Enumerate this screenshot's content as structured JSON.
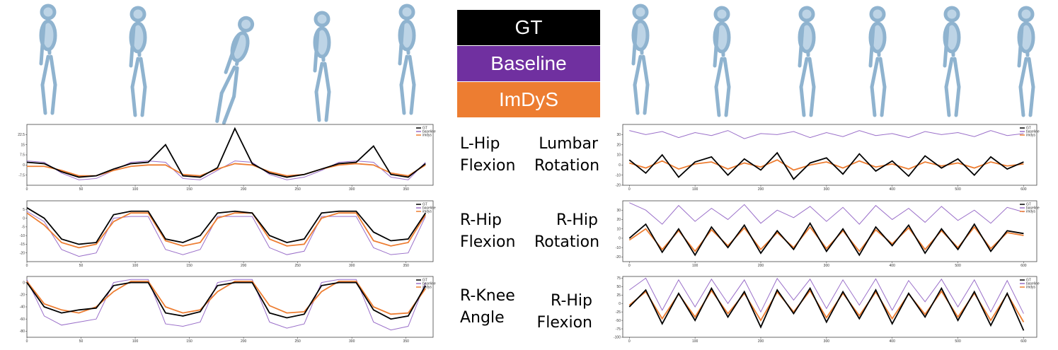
{
  "legend": [
    {
      "name": "GT",
      "color": "#000000"
    },
    {
      "name": "Baseline",
      "color": "#7030a0"
    },
    {
      "name": "ImDyS",
      "color": "#ed7d31"
    }
  ],
  "chart_data": [
    {
      "type": "line",
      "title": "L-Hip Flexion",
      "x": [
        0,
        16,
        32,
        48,
        64,
        80,
        96,
        112,
        128,
        144,
        160,
        176,
        192,
        208,
        224,
        240,
        256,
        272,
        288,
        304,
        320,
        336,
        352,
        368
      ],
      "xlim": [
        0,
        375
      ],
      "xticks": [
        0,
        50,
        100,
        150,
        200,
        250,
        300,
        350
      ],
      "ylim": [
        -15,
        30
      ],
      "yticks": [
        -7.5,
        0,
        7.5,
        15,
        22.5
      ],
      "series": [
        {
          "name": "GT",
          "color": "#000000",
          "values": [
            2,
            1,
            -5,
            -9,
            -8,
            -3,
            1,
            2,
            15,
            -8,
            -9,
            -2,
            27,
            1,
            -6,
            -9,
            -7,
            -3,
            1,
            2,
            14,
            -7,
            -9,
            1
          ]
        },
        {
          "name": "baseline",
          "color": "#9a6fc9",
          "values": [
            3,
            2,
            -6,
            -11,
            -10,
            -4,
            2,
            3,
            2,
            -10,
            -11,
            -4,
            3,
            2,
            -7,
            -11,
            -9,
            -4,
            2,
            3,
            2,
            -9,
            -11,
            2
          ]
        },
        {
          "name": "imdys",
          "color": "#ed7d31",
          "values": [
            -1,
            -1,
            -4,
            -8,
            -8,
            -4,
            -1,
            0,
            0,
            -7,
            -8,
            -3,
            1,
            0,
            -5,
            -8,
            -7,
            -3,
            0,
            1,
            0,
            -6,
            -8,
            0
          ]
        }
      ]
    },
    {
      "type": "line",
      "title": "R-Hip Flexion",
      "x": [
        0,
        16,
        32,
        48,
        64,
        80,
        96,
        112,
        128,
        144,
        160,
        176,
        192,
        208,
        224,
        240,
        256,
        272,
        288,
        304,
        320,
        336,
        352,
        368
      ],
      "xlim": [
        0,
        375
      ],
      "xticks": [
        0,
        50,
        100,
        150,
        200,
        250,
        300,
        350
      ],
      "ylim": [
        -25,
        10
      ],
      "yticks": [
        -20,
        -15,
        -10,
        -5,
        0,
        5
      ],
      "series": [
        {
          "name": "GT",
          "color": "#000000",
          "values": [
            6,
            0,
            -12,
            -15,
            -14,
            2,
            4,
            4,
            -12,
            -14,
            -10,
            3,
            4,
            3,
            -10,
            -14,
            -12,
            3,
            4,
            4,
            -8,
            -13,
            -12,
            3
          ]
        },
        {
          "name": "baseline",
          "color": "#9a6fc9",
          "values": [
            4,
            -2,
            -18,
            -22,
            -20,
            0,
            1,
            1,
            -18,
            -21,
            -18,
            1,
            1,
            1,
            -17,
            -21,
            -19,
            1,
            1,
            1,
            -17,
            -21,
            -20,
            1
          ]
        },
        {
          "name": "imdys",
          "color": "#ed7d31",
          "values": [
            3,
            -4,
            -14,
            -17,
            -15,
            -2,
            3,
            3,
            -13,
            -16,
            -14,
            0,
            3,
            3,
            -12,
            -16,
            -15,
            0,
            3,
            3,
            -13,
            -16,
            -14,
            2
          ]
        }
      ]
    },
    {
      "type": "line",
      "title": "R-Knee Angle",
      "x": [
        0,
        16,
        32,
        48,
        64,
        80,
        96,
        112,
        128,
        144,
        160,
        176,
        192,
        208,
        224,
        240,
        256,
        272,
        288,
        304,
        320,
        336,
        352,
        368
      ],
      "xlim": [
        0,
        375
      ],
      "xticks": [
        0,
        50,
        100,
        150,
        200,
        250,
        300,
        350
      ],
      "ylim": [
        -90,
        10
      ],
      "yticks": [
        -80,
        -60,
        -40,
        -20,
        0
      ],
      "series": [
        {
          "name": "GT",
          "color": "#000000",
          "values": [
            0,
            -40,
            -50,
            -45,
            -42,
            -5,
            0,
            0,
            -50,
            -55,
            -48,
            -5,
            0,
            0,
            -50,
            -58,
            -52,
            -5,
            0,
            0,
            -45,
            -60,
            -55,
            -5
          ]
        },
        {
          "name": "baseline",
          "color": "#9a6fc9",
          "values": [
            5,
            -55,
            -70,
            -65,
            -60,
            0,
            5,
            5,
            -68,
            -72,
            -65,
            0,
            5,
            5,
            -65,
            -75,
            -68,
            0,
            5,
            5,
            -65,
            -78,
            -72,
            0
          ]
        },
        {
          "name": "imdys",
          "color": "#ed7d31",
          "values": [
            2,
            -35,
            -45,
            -50,
            -40,
            -15,
            2,
            2,
            -40,
            -50,
            -45,
            -15,
            2,
            2,
            -38,
            -50,
            -48,
            -15,
            2,
            2,
            -40,
            -52,
            -50,
            -10
          ]
        }
      ]
    },
    {
      "type": "line",
      "title": "Lumbar Rotation",
      "x": [
        0,
        25,
        50,
        75,
        100,
        125,
        150,
        175,
        200,
        225,
        250,
        275,
        300,
        325,
        350,
        375,
        400,
        425,
        450,
        475,
        500,
        525,
        550,
        575,
        600
      ],
      "xlim": [
        -10,
        620
      ],
      "xticks": [
        0,
        100,
        200,
        300,
        400,
        500,
        600
      ],
      "ylim": [
        -20,
        40
      ],
      "yticks": [
        -20,
        -10,
        0,
        10,
        20,
        30
      ],
      "series": [
        {
          "name": "GT",
          "color": "#000000",
          "values": [
            5,
            -8,
            10,
            -12,
            3,
            8,
            -10,
            6,
            -5,
            12,
            -14,
            2,
            7,
            -9,
            11,
            -6,
            4,
            -11,
            9,
            -3,
            6,
            -10,
            8,
            -4,
            3
          ]
        },
        {
          "name": "baseline",
          "color": "#9a6fc9",
          "values": [
            34,
            30,
            33,
            27,
            32,
            29,
            34,
            26,
            31,
            30,
            33,
            27,
            32,
            28,
            34,
            29,
            31,
            27,
            33,
            30,
            32,
            28,
            34,
            29,
            31
          ]
        },
        {
          "name": "imdys",
          "color": "#ed7d31",
          "values": [
            2,
            -3,
            4,
            -4,
            1,
            3,
            -4,
            2,
            -2,
            5,
            -5,
            0,
            3,
            -3,
            4,
            -2,
            1,
            -4,
            3,
            -1,
            2,
            -3,
            3,
            -1,
            1
          ]
        }
      ]
    },
    {
      "type": "line",
      "title": "R-Hip Rotation",
      "x": [
        0,
        25,
        50,
        75,
        100,
        125,
        150,
        175,
        200,
        225,
        250,
        275,
        300,
        325,
        350,
        375,
        400,
        425,
        450,
        475,
        500,
        525,
        550,
        575,
        600
      ],
      "xlim": [
        -10,
        620
      ],
      "xticks": [
        0,
        100,
        200,
        300,
        400,
        500,
        600
      ],
      "ylim": [
        -25,
        40
      ],
      "yticks": [
        -20,
        -10,
        0,
        10,
        20,
        30
      ],
      "series": [
        {
          "name": "GT",
          "color": "#000000",
          "values": [
            0,
            15,
            -15,
            10,
            -18,
            12,
            -10,
            14,
            -16,
            8,
            -12,
            16,
            -14,
            10,
            -18,
            12,
            -8,
            14,
            -16,
            10,
            -12,
            15,
            -14,
            8,
            5
          ]
        },
        {
          "name": "baseline",
          "color": "#9a6fc9",
          "values": [
            38,
            30,
            15,
            35,
            18,
            32,
            20,
            36,
            16,
            30,
            22,
            34,
            18,
            33,
            15,
            35,
            20,
            32,
            17,
            34,
            19,
            30,
            16,
            33,
            28
          ]
        },
        {
          "name": "imdys",
          "color": "#ed7d31",
          "values": [
            -2,
            10,
            -12,
            8,
            -14,
            9,
            -8,
            11,
            -12,
            6,
            -10,
            12,
            -11,
            8,
            -14,
            9,
            -6,
            11,
            -12,
            8,
            -10,
            12,
            -11,
            6,
            3
          ]
        }
      ]
    },
    {
      "type": "line",
      "title": "R-Hip Flexion",
      "x": [
        0,
        25,
        50,
        75,
        100,
        125,
        150,
        175,
        200,
        225,
        250,
        275,
        300,
        325,
        350,
        375,
        400,
        425,
        450,
        475,
        500,
        525,
        550,
        575,
        600
      ],
      "xlim": [
        -10,
        620
      ],
      "xticks": [
        0,
        100,
        200,
        300,
        400,
        500,
        600
      ],
      "ylim": [
        -100,
        80
      ],
      "yticks": [
        -100,
        -75,
        -50,
        -25,
        0,
        25,
        50,
        75
      ],
      "series": [
        {
          "name": "GT",
          "color": "#000000",
          "values": [
            -10,
            40,
            -60,
            30,
            -50,
            45,
            -40,
            35,
            -70,
            40,
            -30,
            45,
            -55,
            35,
            -45,
            40,
            -60,
            30,
            -40,
            45,
            -50,
            35,
            -65,
            30,
            -80
          ]
        },
        {
          "name": "baseline",
          "color": "#9a6fc9",
          "values": [
            40,
            75,
            -20,
            70,
            -10,
            72,
            0,
            70,
            -25,
            74,
            10,
            72,
            -15,
            70,
            -5,
            73,
            -20,
            68,
            5,
            72,
            -10,
            70,
            -25,
            68,
            -30
          ]
        },
        {
          "name": "imdys",
          "color": "#ed7d31",
          "values": [
            -5,
            35,
            -45,
            28,
            -40,
            38,
            -30,
            30,
            -50,
            34,
            -25,
            38,
            -42,
            30,
            -36,
            34,
            -45,
            28,
            -32,
            36,
            -40,
            30,
            -50,
            28,
            -55
          ]
        }
      ]
    }
  ]
}
